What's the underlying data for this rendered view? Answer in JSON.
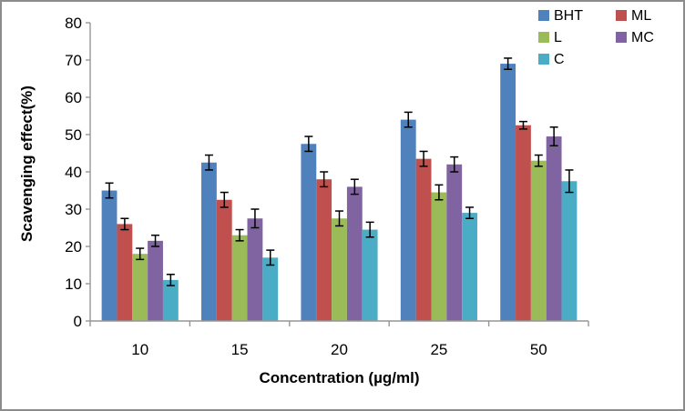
{
  "window": {
    "background_color": "#ffffff",
    "border_color": "#8c8c8c"
  },
  "chart_data": {
    "type": "bar",
    "title": "",
    "xlabel": "Concentration (µg/ml)",
    "ylabel": "Scavenging effect(%)",
    "categories": [
      "10",
      "15",
      "20",
      "25",
      "50"
    ],
    "series": [
      {
        "name": "BHT",
        "color": "#4F81BD",
        "values": [
          35,
          42.5,
          47.5,
          54,
          69
        ],
        "errors": [
          2,
          2,
          2,
          2,
          1.5
        ]
      },
      {
        "name": "ML",
        "color": "#C0504D",
        "values": [
          26,
          32.5,
          38,
          43.5,
          52.5
        ],
        "errors": [
          1.5,
          2,
          2,
          2,
          1
        ]
      },
      {
        "name": "L",
        "color": "#9BBB59",
        "values": [
          18,
          23,
          27.5,
          34.5,
          43
        ],
        "errors": [
          1.5,
          1.5,
          2,
          2,
          1.5
        ]
      },
      {
        "name": "MC",
        "color": "#8064A2",
        "values": [
          21.5,
          27.5,
          36,
          42,
          49.5
        ],
        "errors": [
          1.5,
          2.5,
          2,
          2,
          2.5
        ]
      },
      {
        "name": "C",
        "color": "#4BACC6",
        "values": [
          11,
          17,
          24.5,
          29,
          37.5
        ],
        "errors": [
          1.5,
          2,
          2,
          1.5,
          3
        ]
      }
    ],
    "ylim": [
      0,
      80
    ],
    "ytick_step": 10,
    "grid": false,
    "error_bars": true,
    "legend_position": "top-right",
    "legend_columns": 2,
    "axis_color": "#969696",
    "error_bar_color": "#000000",
    "text_color": "#000000",
    "tick_font_size": 17,
    "legend_font_size": 16
  }
}
